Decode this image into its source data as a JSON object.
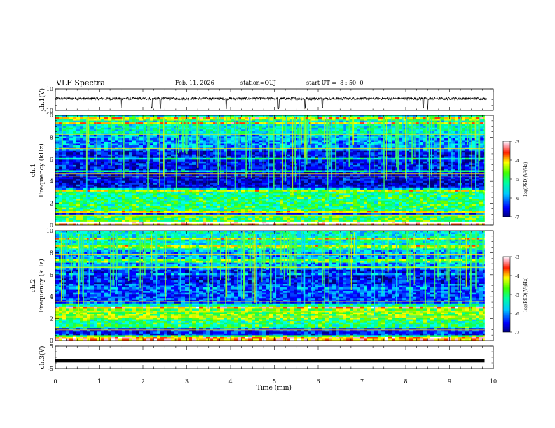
{
  "header": {
    "title": "VLF Spectra",
    "date": "Feb. 11, 2026",
    "station": "station=OUJ",
    "start_ut": "start UT =  8 : 50: 0"
  },
  "chart_data": [
    {
      "type": "line",
      "panel": "ch1-waveform",
      "title": "",
      "ylabel": "ch.1(V)",
      "ylim": [
        -10,
        10
      ],
      "yticks": [
        "10",
        "-10"
      ],
      "xlim": [
        0,
        10
      ],
      "series_desc": "noisy trace centred slightly above 0 V with occasional negative spikes",
      "baseline": 1,
      "spikes_min": [
        1.5,
        2.2,
        2.4,
        3.9,
        5.1,
        5.7,
        6.1,
        8.4,
        8.5
      ]
    },
    {
      "type": "heatmap",
      "panel": "ch1-spectrogram",
      "ylabel": "ch.1\nFrequency (kHz)",
      "ylabel_line1": "ch.1",
      "ylabel_line2": "Frequency (kHz)",
      "ylim": [
        0,
        10
      ],
      "yticks": [
        "0",
        "2",
        "4",
        "6",
        "8",
        "10"
      ],
      "xlim": [
        0,
        10
      ],
      "data_extent_min": 9.8,
      "colorbar": {
        "label": "log(PSD)(V²/Hz)",
        "range": [
          -7,
          -3
        ],
        "ticks": [
          "-3",
          "-4",
          "-5",
          "-6",
          "-7"
        ]
      }
    },
    {
      "type": "heatmap",
      "panel": "ch2-spectrogram",
      "ylabel": "ch.2\nFrequency (kHz)",
      "ylabel_line1": "ch.2",
      "ylabel_line2": "Frequency (kHz)",
      "ylim": [
        0,
        10
      ],
      "yticks": [
        "0",
        "2",
        "4",
        "6",
        "8",
        "10"
      ],
      "xlim": [
        0,
        10
      ],
      "data_extent_min": 9.8,
      "colorbar": {
        "label": "log(PSD)(V²/Hz)",
        "range": [
          -7,
          -3
        ],
        "ticks": [
          "-3",
          "-4",
          "-5",
          "-6",
          "-7"
        ]
      }
    },
    {
      "type": "line",
      "panel": "ch3-waveform",
      "ylabel": "ch.3(V)",
      "ylim": [
        -5,
        5
      ],
      "yticks": [
        "5",
        "-5"
      ],
      "xlim": [
        0,
        10
      ],
      "xlabel": "Time (min)",
      "xticks": [
        "0",
        "1",
        "2",
        "3",
        "4",
        "5",
        "6",
        "7",
        "8",
        "9",
        "10"
      ],
      "value": -1.5,
      "data_extent_min": 9.8
    }
  ]
}
